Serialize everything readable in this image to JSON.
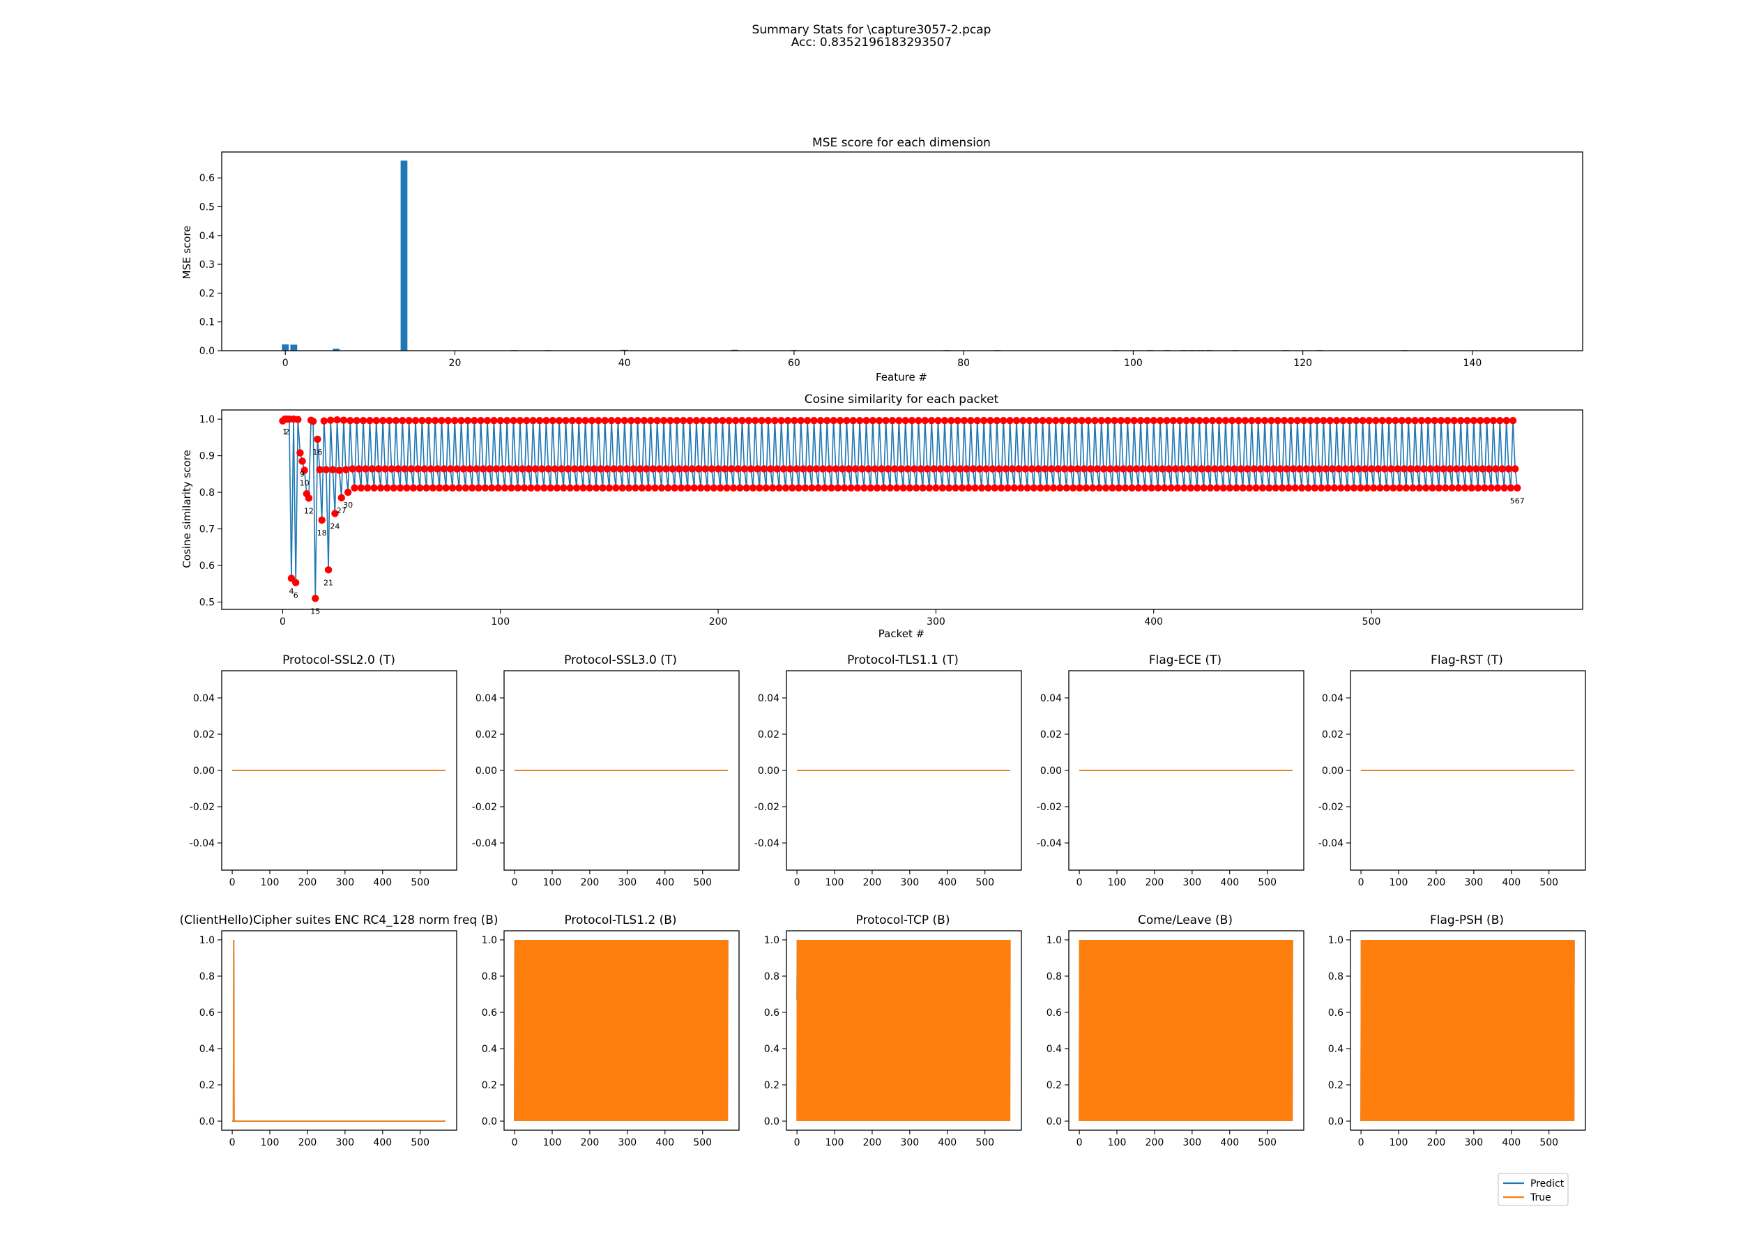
{
  "figure": {
    "suptitle_line1": "Summary Stats for \\capture3057-2.pcap",
    "suptitle_line2": "Acc: 0.8352196183293507"
  },
  "colors": {
    "predict": "#1f77b4",
    "true": "#ff7f0e",
    "marker": "#ff0000",
    "bar": "#1f77b4"
  },
  "legend": {
    "placement": "lower-right",
    "items": [
      "Predict",
      "True"
    ]
  },
  "chart_data": [
    {
      "id": "mse",
      "type": "bar",
      "title": "MSE score for each dimension",
      "xlabel": "Feature #",
      "ylabel": "MSE score",
      "xlim": [
        -7.5,
        153
      ],
      "ylim": [
        0,
        0.69
      ],
      "xticks": [
        0,
        20,
        40,
        60,
        80,
        100,
        120,
        140
      ],
      "yticks": [
        0.0,
        0.1,
        0.2,
        0.3,
        0.4,
        0.5,
        0.6
      ],
      "ytick_decimals": 1,
      "bars": [
        {
          "x": 0,
          "value": 0.022
        },
        {
          "x": 1,
          "value": 0.021
        },
        {
          "x": 6,
          "value": 0.007
        },
        {
          "x": 14,
          "value": 0.66
        },
        {
          "x": 27,
          "value": 0.002
        },
        {
          "x": 31,
          "value": 0.002
        },
        {
          "x": 40,
          "value": 0.003
        },
        {
          "x": 53,
          "value": 0.003
        },
        {
          "x": 60,
          "value": 0.002
        },
        {
          "x": 78,
          "value": 0.002
        },
        {
          "x": 84,
          "value": 0.002
        },
        {
          "x": 98,
          "value": 0.002
        },
        {
          "x": 102,
          "value": 0.002
        },
        {
          "x": 104,
          "value": 0.002
        },
        {
          "x": 106,
          "value": 0.002
        },
        {
          "x": 107,
          "value": 0.002
        },
        {
          "x": 108,
          "value": 0.002
        },
        {
          "x": 109,
          "value": 0.002
        },
        {
          "x": 112,
          "value": 0.002
        },
        {
          "x": 118,
          "value": 0.002
        },
        {
          "x": 122,
          "value": 0.002
        },
        {
          "x": 132,
          "value": 0.002
        }
      ]
    },
    {
      "id": "cosine",
      "type": "line",
      "title": "Cosine similarity for each packet",
      "xlabel": "Packet #",
      "ylabel": "Cosine similarity score",
      "xlim": [
        -28,
        597
      ],
      "ylim": [
        0.48,
        1.025
      ],
      "xticks": [
        0,
        100,
        200,
        300,
        400,
        500
      ],
      "yticks": [
        0.5,
        0.6,
        0.7,
        0.8,
        0.9,
        1.0
      ],
      "ytick_decimals": 1,
      "n_packets": 568,
      "initial_values": [
        0.995,
        1.0,
        1.0,
        1.0,
        0.565,
        1.0,
        0.553,
        0.999,
        0.908,
        0.885,
        0.86,
        0.796,
        0.784,
        0.997,
        0.994,
        0.51,
        0.945,
        0.862,
        0.724,
        0.995,
        0.862,
        0.588,
        0.997,
        0.862,
        0.742,
        0.998,
        0.86,
        0.785,
        0.997,
        0.862,
        0.8
      ],
      "periodic_pattern": [
        0.996,
        0.864,
        0.812
      ],
      "point_labels": [
        {
          "i": 1,
          "text": "1"
        },
        {
          "i": 2,
          "text": "2"
        },
        {
          "i": 4,
          "text": "4"
        },
        {
          "i": 6,
          "text": "6"
        },
        {
          "i": 9,
          "text": "9"
        },
        {
          "i": 10,
          "text": "10"
        },
        {
          "i": 12,
          "text": "12"
        },
        {
          "i": 15,
          "text": "15"
        },
        {
          "i": 16,
          "text": "16"
        },
        {
          "i": 18,
          "text": "18"
        },
        {
          "i": 21,
          "text": "21"
        },
        {
          "i": 24,
          "text": "24"
        },
        {
          "i": 27,
          "text": "27"
        },
        {
          "i": 30,
          "text": "30"
        },
        {
          "i": 567,
          "text": "567"
        }
      ]
    },
    {
      "id": "ssl20",
      "type": "line",
      "title": "Protocol-SSL2.0 (T)",
      "xlim": [
        -28,
        597
      ],
      "ylim": [
        -0.055,
        0.055
      ],
      "xticks": [
        0,
        100,
        200,
        300,
        400,
        500
      ],
      "yticks": [
        -0.04,
        -0.02,
        0.0,
        0.02,
        0.04
      ],
      "ytick_decimals": 2,
      "series": [
        {
          "name": "Predict",
          "kind": "const",
          "value": 0
        },
        {
          "name": "True",
          "kind": "const",
          "value": 0
        }
      ]
    },
    {
      "id": "ssl30",
      "type": "line",
      "title": "Protocol-SSL3.0 (T)",
      "xlim": [
        -28,
        597
      ],
      "ylim": [
        -0.055,
        0.055
      ],
      "xticks": [
        0,
        100,
        200,
        300,
        400,
        500
      ],
      "yticks": [
        -0.04,
        -0.02,
        0.0,
        0.02,
        0.04
      ],
      "ytick_decimals": 2,
      "series": [
        {
          "name": "Predict",
          "kind": "const",
          "value": 0
        },
        {
          "name": "True",
          "kind": "const",
          "value": 0
        }
      ]
    },
    {
      "id": "tls11",
      "type": "line",
      "title": "Protocol-TLS1.1 (T)",
      "xlim": [
        -28,
        597
      ],
      "ylim": [
        -0.055,
        0.055
      ],
      "xticks": [
        0,
        100,
        200,
        300,
        400,
        500
      ],
      "yticks": [
        -0.04,
        -0.02,
        0.0,
        0.02,
        0.04
      ],
      "ytick_decimals": 2,
      "series": [
        {
          "name": "Predict",
          "kind": "const",
          "value": 0
        },
        {
          "name": "True",
          "kind": "const",
          "value": 0
        }
      ]
    },
    {
      "id": "ece",
      "type": "line",
      "title": "Flag-ECE (T)",
      "xlim": [
        -28,
        597
      ],
      "ylim": [
        -0.055,
        0.055
      ],
      "xticks": [
        0,
        100,
        200,
        300,
        400,
        500
      ],
      "yticks": [
        -0.04,
        -0.02,
        0.0,
        0.02,
        0.04
      ],
      "ytick_decimals": 2,
      "series": [
        {
          "name": "Predict",
          "kind": "const",
          "value": 0
        },
        {
          "name": "True",
          "kind": "const",
          "value": 0
        }
      ]
    },
    {
      "id": "rst",
      "type": "line",
      "title": "Flag-RST (T)",
      "xlim": [
        -28,
        597
      ],
      "ylim": [
        -0.055,
        0.055
      ],
      "xticks": [
        0,
        100,
        200,
        300,
        400,
        500
      ],
      "yticks": [
        -0.04,
        -0.02,
        0.0,
        0.02,
        0.04
      ],
      "ytick_decimals": 2,
      "series": [
        {
          "name": "Predict",
          "kind": "const",
          "value": 0
        },
        {
          "name": "True",
          "kind": "const",
          "value": 0
        }
      ]
    },
    {
      "id": "rc4",
      "type": "line",
      "title": "(ClientHello)Cipher suites ENC RC4_128 norm freq (B)",
      "xlim": [
        -28,
        597
      ],
      "ylim": [
        -0.05,
        1.05
      ],
      "xticks": [
        0,
        100,
        200,
        300,
        400,
        500
      ],
      "yticks": [
        0.0,
        0.2,
        0.4,
        0.6,
        0.8,
        1.0
      ],
      "ytick_decimals": 1,
      "series": [
        {
          "name": "Predict",
          "kind": "points",
          "points": [
            [
              0,
              0
            ],
            [
              3,
              0
            ],
            [
              4,
              1
            ],
            [
              5,
              0
            ],
            [
              567,
              0
            ]
          ]
        },
        {
          "name": "True",
          "kind": "points",
          "points": [
            [
              0,
              0
            ],
            [
              3,
              0
            ],
            [
              4,
              1
            ],
            [
              5,
              0
            ],
            [
              567,
              0
            ]
          ]
        }
      ]
    },
    {
      "id": "tls12",
      "type": "line",
      "title": "Protocol-TLS1.2 (B)",
      "xlim": [
        -28,
        597
      ],
      "ylim": [
        -0.05,
        1.05
      ],
      "xticks": [
        0,
        100,
        200,
        300,
        400,
        500
      ],
      "yticks": [
        0.0,
        0.2,
        0.4,
        0.6,
        0.8,
        1.0
      ],
      "ytick_decimals": 1,
      "series": [
        {
          "name": "Predict",
          "kind": "alternating",
          "from": 0,
          "to": 567,
          "low": 0,
          "high": 1
        },
        {
          "name": "True",
          "kind": "alternating",
          "from": 0,
          "to": 567,
          "low": 0,
          "high": 1
        }
      ]
    },
    {
      "id": "tcp",
      "type": "line",
      "title": "Protocol-TCP (B)",
      "xlim": [
        -28,
        597
      ],
      "ylim": [
        -0.05,
        1.05
      ],
      "xticks": [
        0,
        100,
        200,
        300,
        400,
        500
      ],
      "yticks": [
        0.0,
        0.2,
        0.4,
        0.6,
        0.8,
        1.0
      ],
      "ytick_decimals": 1,
      "series": [
        {
          "name": "Predict",
          "kind": "points",
          "points": [
            [
              0,
              0.67
            ],
            [
              1,
              1.0
            ]
          ]
        },
        {
          "name": "True",
          "kind": "alternating",
          "from": 0,
          "to": 567,
          "low": 0,
          "high": 1
        }
      ]
    },
    {
      "id": "comeleave",
      "type": "line",
      "title": "Come/Leave (B)",
      "xlim": [
        -28,
        597
      ],
      "ylim": [
        -0.05,
        1.05
      ],
      "xticks": [
        0,
        100,
        200,
        300,
        400,
        500
      ],
      "yticks": [
        0.0,
        0.2,
        0.4,
        0.6,
        0.8,
        1.0
      ],
      "ytick_decimals": 1,
      "series": [
        {
          "name": "Predict",
          "kind": "alternating",
          "from": 0,
          "to": 567,
          "low": 0,
          "high": 1
        },
        {
          "name": "True",
          "kind": "alternating",
          "from": 0,
          "to": 567,
          "low": 0,
          "high": 1
        }
      ]
    },
    {
      "id": "psh",
      "type": "line",
      "title": "Flag-PSH (B)",
      "xlim": [
        -28,
        597
      ],
      "ylim": [
        -0.05,
        1.05
      ],
      "xticks": [
        0,
        100,
        200,
        300,
        400,
        500
      ],
      "yticks": [
        0.0,
        0.2,
        0.4,
        0.6,
        0.8,
        1.0
      ],
      "ytick_decimals": 1,
      "series": [
        {
          "name": "Predict",
          "kind": "alternating",
          "from": 0,
          "to": 567,
          "low": 0,
          "high": 1
        },
        {
          "name": "True",
          "kind": "alternating",
          "from": 0,
          "to": 567,
          "low": 0,
          "high": 1
        }
      ]
    }
  ]
}
